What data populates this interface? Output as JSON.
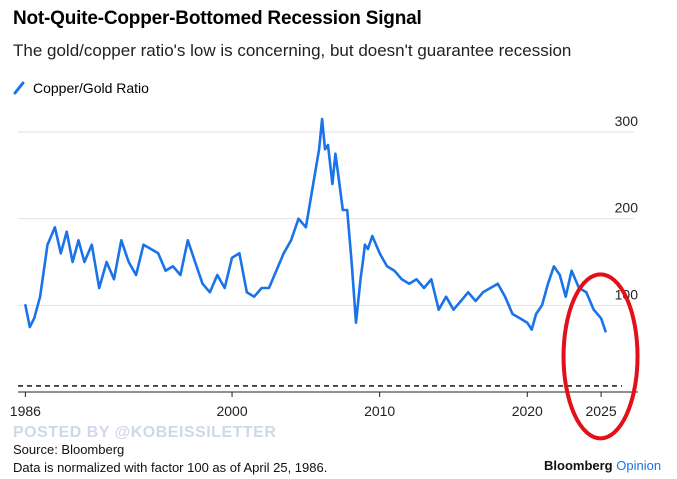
{
  "header": {
    "title": "Not-Quite-Copper-Bottomed Recession Signal",
    "subtitle": "The gold/copper ratio's low is concerning, but doesn't guarantee recession"
  },
  "legend": {
    "label": "Copper/Gold Ratio"
  },
  "footer": {
    "watermark": "POSTED BY @KOBEISSILETTER",
    "source": "Source: Bloomberg",
    "note": "Data is normalized with factor 100 as of April 25, 1986.",
    "brand_main": "Bloomberg",
    "brand_accent": "Opinion"
  },
  "colors": {
    "line": "#1a73e8",
    "grid": "#e2e2e2",
    "circle": "#e3101a",
    "baseline": "#000000"
  },
  "chart_data": {
    "type": "line",
    "title": "Not-Quite-Copper-Bottomed Recession Signal",
    "xlabel": "",
    "ylabel": "",
    "xlim": [
      1985.5,
      2027.5
    ],
    "ylim": [
      0,
      330
    ],
    "x_ticks": [
      1986,
      2000,
      2010,
      2020,
      2025
    ],
    "y_ticks": [
      100,
      200,
      300
    ],
    "y_tick_labels": [
      "100",
      "200",
      "300"
    ],
    "reference_line": {
      "y": 7,
      "style": "dashed"
    },
    "annotation": {
      "type": "circle",
      "x_center": 2025.3,
      "y_center": 55,
      "description": "red ellipse around recent lows"
    },
    "series": [
      {
        "name": "Copper/Gold Ratio",
        "x": [
          1986.0,
          1986.3,
          1986.6,
          1987.0,
          1987.5,
          1988.0,
          1988.4,
          1988.8,
          1989.2,
          1989.6,
          1990.0,
          1990.5,
          1991.0,
          1991.5,
          1992.0,
          1992.5,
          1993.0,
          1993.5,
          1994.0,
          1994.5,
          1995.0,
          1995.5,
          1996.0,
          1996.5,
          1997.0,
          1997.5,
          1998.0,
          1998.5,
          1999.0,
          1999.5,
          2000.0,
          2000.5,
          2001.0,
          2001.5,
          2002.0,
          2002.5,
          2003.0,
          2003.5,
          2004.0,
          2004.5,
          2005.0,
          2005.5,
          2005.9,
          2006.1,
          2006.3,
          2006.5,
          2006.8,
          2007.0,
          2007.2,
          2007.5,
          2007.8,
          2008.1,
          2008.4,
          2008.7,
          2008.9,
          2009.0,
          2009.2,
          2009.5,
          2010.0,
          2010.5,
          2011.0,
          2011.5,
          2012.0,
          2012.5,
          2013.0,
          2013.5,
          2014.0,
          2014.5,
          2015.0,
          2015.5,
          2016.0,
          2016.5,
          2017.0,
          2017.5,
          2018.0,
          2018.5,
          2019.0,
          2019.5,
          2020.0,
          2020.3,
          2020.6,
          2021.0,
          2021.4,
          2021.8,
          2022.2,
          2022.6,
          2023.0,
          2023.5,
          2024.0,
          2024.5,
          2025.0,
          2025.3
        ],
        "y": [
          100,
          75,
          85,
          110,
          170,
          190,
          160,
          185,
          150,
          175,
          150,
          170,
          120,
          150,
          130,
          175,
          150,
          135,
          170,
          165,
          160,
          140,
          145,
          135,
          175,
          150,
          125,
          115,
          135,
          120,
          155,
          160,
          115,
          110,
          120,
          120,
          140,
          160,
          175,
          200,
          190,
          240,
          280,
          315,
          280,
          285,
          240,
          275,
          250,
          210,
          210,
          150,
          80,
          130,
          155,
          170,
          165,
          180,
          160,
          145,
          140,
          130,
          125,
          130,
          120,
          130,
          95,
          110,
          95,
          105,
          115,
          105,
          115,
          120,
          125,
          110,
          90,
          85,
          80,
          72,
          90,
          100,
          125,
          145,
          135,
          110,
          140,
          120,
          115,
          95,
          85,
          70
        ]
      }
    ]
  }
}
